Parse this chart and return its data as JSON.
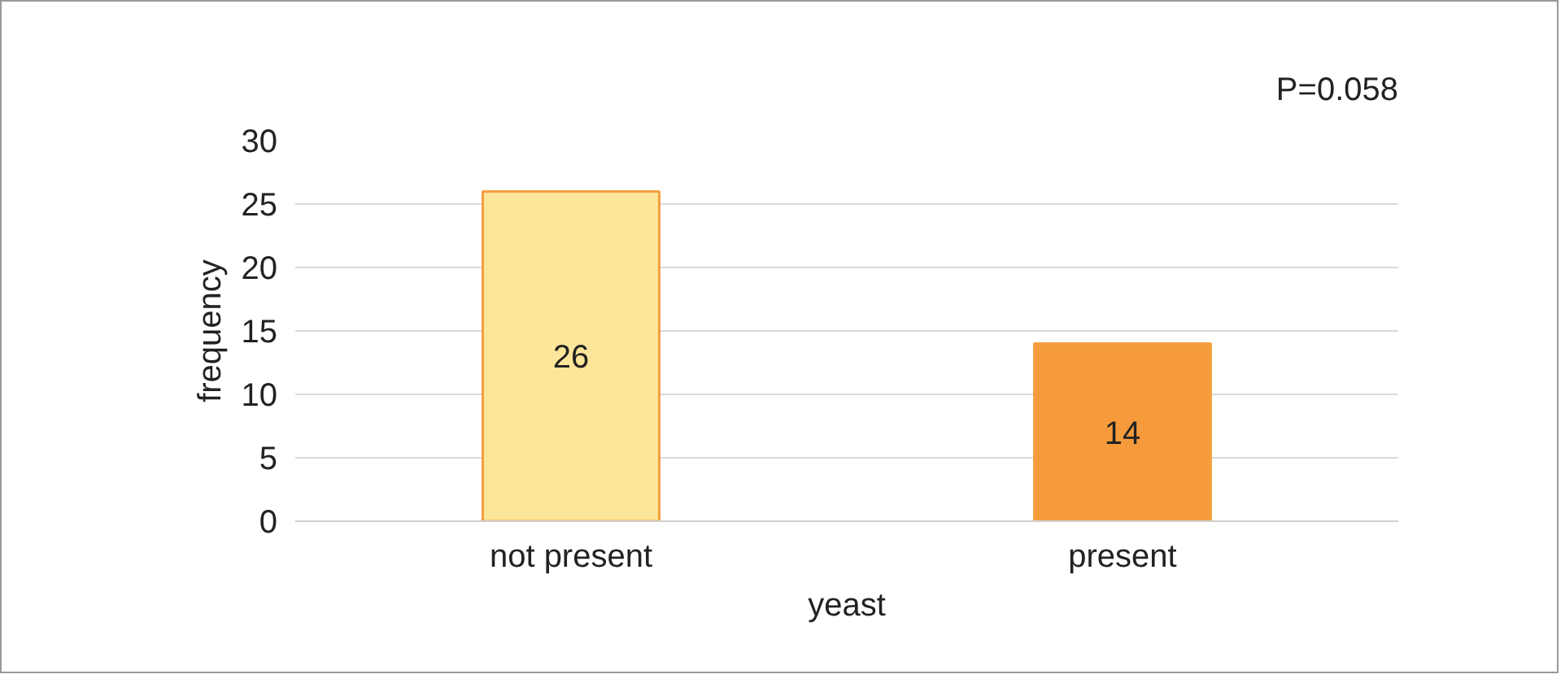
{
  "chart_data": {
    "type": "bar",
    "categories": [
      "not present",
      "present"
    ],
    "values": [
      26,
      14
    ],
    "colors": [
      "#fde699",
      "#f59b3b"
    ],
    "xlabel": "yeast",
    "ylabel": "frequency",
    "ylim": [
      0,
      30
    ],
    "yticks": [
      0,
      5,
      10,
      15,
      20,
      25,
      30
    ],
    "grid": "y",
    "data_labels": true,
    "annotations": [
      "P=0.058"
    ]
  }
}
